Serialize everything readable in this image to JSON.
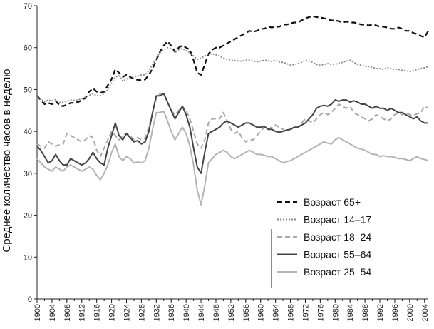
{
  "chart_data": {
    "type": "line",
    "title": "",
    "xlabel": "",
    "ylabel": "Среднее количество часов в неделю",
    "xlim": [
      1900,
      2005
    ],
    "ylim": [
      0,
      70
    ],
    "yticks": [
      0,
      10,
      20,
      30,
      40,
      50,
      60,
      70
    ],
    "xticks": [
      1900,
      1904,
      1908,
      1912,
      1916,
      1920,
      1924,
      1928,
      1932,
      1936,
      1940,
      1944,
      1948,
      1952,
      1956,
      1960,
      1964,
      1968,
      1972,
      1976,
      1980,
      1984,
      1988,
      1992,
      1996,
      2000,
      2004
    ],
    "legend_position": "bottom-right",
    "x": [
      1900,
      1901,
      1902,
      1903,
      1904,
      1905,
      1906,
      1907,
      1908,
      1909,
      1910,
      1911,
      1912,
      1913,
      1914,
      1915,
      1916,
      1917,
      1918,
      1919,
      1920,
      1921,
      1922,
      1923,
      1924,
      1925,
      1926,
      1927,
      1928,
      1929,
      1930,
      1931,
      1932,
      1933,
      1934,
      1935,
      1936,
      1937,
      1938,
      1939,
      1940,
      1941,
      1942,
      1943,
      1944,
      1945,
      1946,
      1947,
      1948,
      1949,
      1950,
      1951,
      1952,
      1953,
      1954,
      1955,
      1956,
      1957,
      1958,
      1959,
      1960,
      1961,
      1962,
      1963,
      1964,
      1965,
      1966,
      1967,
      1968,
      1969,
      1970,
      1971,
      1972,
      1973,
      1974,
      1975,
      1976,
      1977,
      1978,
      1979,
      1980,
      1981,
      1982,
      1983,
      1984,
      1985,
      1986,
      1987,
      1988,
      1989,
      1990,
      1991,
      1992,
      1993,
      1994,
      1995,
      1996,
      1997,
      1998,
      1999,
      2000,
      2001,
      2002,
      2003,
      2004,
      2005
    ],
    "series": [
      {
        "name": "Возраст 65+",
        "color": "#111111",
        "style": "dashed",
        "values": [
          48.5,
          47.5,
          46.5,
          46.8,
          46.5,
          47.2,
          46.3,
          46.0,
          46.4,
          46.8,
          46.8,
          47.0,
          47.4,
          48.0,
          49.5,
          50.3,
          49.5,
          49.2,
          49.5,
          51.0,
          52.5,
          54.8,
          54.0,
          53.0,
          53.5,
          53.0,
          52.5,
          52.3,
          52.2,
          52.4,
          53.5,
          55.0,
          57.0,
          59.0,
          60.5,
          61.5,
          60.5,
          59.0,
          60.0,
          60.5,
          60.0,
          59.5,
          57.0,
          54.0,
          53.5,
          56.0,
          58.5,
          59.5,
          60.0,
          60.0,
          60.5,
          61.0,
          61.5,
          62.0,
          62.5,
          63.0,
          63.5,
          64.0,
          63.8,
          64.0,
          64.5,
          64.5,
          65.0,
          64.8,
          65.0,
          65.0,
          65.5,
          65.5,
          65.8,
          66.0,
          66.0,
          66.5,
          67.0,
          67.3,
          67.5,
          67.3,
          67.2,
          67.0,
          66.8,
          66.5,
          66.5,
          66.3,
          66.0,
          66.2,
          66.0,
          66.0,
          65.8,
          65.5,
          65.5,
          65.3,
          65.5,
          65.3,
          65.0,
          65.0,
          64.8,
          64.5,
          64.5,
          64.8,
          64.5,
          64.0,
          64.0,
          63.5,
          63.2,
          62.8,
          62.5,
          64.0
        ]
      },
      {
        "name": "Возраст 14–17",
        "color": "#8a8a8a",
        "style": "dotted",
        "values": [
          48.2,
          47.8,
          47.0,
          47.5,
          47.3,
          47.6,
          46.9,
          47.0,
          47.2,
          47.5,
          47.4,
          47.5,
          47.8,
          48.2,
          48.6,
          49.0,
          48.5,
          48.5,
          49.0,
          50.0,
          51.5,
          53.0,
          53.3,
          52.0,
          52.5,
          52.8,
          53.0,
          53.2,
          53.5,
          53.5,
          54.5,
          56.0,
          57.5,
          58.8,
          59.5,
          60.0,
          59.8,
          58.8,
          59.5,
          59.8,
          59.3,
          58.8,
          58.0,
          57.2,
          57.5,
          58.0,
          58.5,
          58.5,
          58.3,
          58.0,
          57.5,
          57.2,
          57.0,
          56.9,
          56.8,
          56.8,
          57.0,
          57.0,
          56.8,
          56.6,
          56.8,
          57.0,
          56.9,
          56.7,
          57.0,
          56.6,
          56.5,
          56.2,
          55.8,
          56.0,
          56.2,
          56.5,
          57.0,
          56.8,
          56.5,
          56.0,
          55.8,
          56.0,
          56.2,
          56.0,
          56.0,
          56.3,
          56.5,
          56.8,
          57.0,
          56.5,
          56.0,
          55.8,
          55.5,
          55.5,
          55.3,
          55.0,
          55.0,
          54.8,
          55.2,
          55.0,
          54.8,
          54.8,
          54.6,
          54.5,
          54.3,
          54.5,
          54.8,
          55.0,
          55.2,
          55.5
        ]
      },
      {
        "name": "Возраст 18–24",
        "color": "#a9a9a9",
        "style": "dashed",
        "values": [
          37.0,
          36.5,
          36.0,
          37.5,
          37.0,
          36.5,
          36.8,
          37.0,
          39.5,
          39.0,
          38.5,
          38.0,
          37.5,
          38.0,
          39.0,
          38.5,
          35.5,
          34.0,
          36.0,
          38.0,
          40.0,
          39.0,
          38.0,
          39.0,
          39.5,
          39.0,
          38.0,
          38.5,
          38.0,
          38.5,
          41.0,
          44.5,
          48.0,
          49.0,
          49.0,
          47.0,
          45.0,
          44.0,
          45.0,
          46.0,
          45.0,
          43.0,
          40.0,
          37.0,
          36.0,
          38.0,
          42.0,
          43.0,
          43.0,
          43.0,
          44.5,
          42.5,
          40.5,
          39.5,
          40.0,
          38.5,
          37.5,
          38.0,
          38.0,
          39.0,
          40.0,
          41.0,
          40.5,
          41.0,
          41.5,
          41.0,
          40.5,
          40.0,
          40.5,
          40.8,
          41.0,
          42.0,
          43.0,
          42.5,
          42.0,
          43.0,
          44.0,
          44.5,
          44.0,
          44.5,
          45.5,
          46.5,
          46.0,
          45.5,
          46.0,
          44.5,
          44.0,
          43.5,
          43.0,
          42.5,
          43.0,
          44.0,
          43.5,
          43.0,
          42.5,
          43.0,
          44.0,
          44.5,
          44.0,
          44.5,
          44.0,
          43.8,
          44.2,
          44.5,
          46.0,
          45.5
        ]
      },
      {
        "name": "Возраст 55–64",
        "color": "#444444",
        "style": "solid",
        "values": [
          36.5,
          35.5,
          34.0,
          32.5,
          33.0,
          34.5,
          33.0,
          32.0,
          32.0,
          33.5,
          33.0,
          32.5,
          32.0,
          32.5,
          33.5,
          35.0,
          33.5,
          32.5,
          32.0,
          36.0,
          39.0,
          42.0,
          39.0,
          38.0,
          39.5,
          38.5,
          37.5,
          37.8,
          37.0,
          37.5,
          40.0,
          44.5,
          48.5,
          48.5,
          49.0,
          47.0,
          45.0,
          43.0,
          44.5,
          46.0,
          44.0,
          41.0,
          36.0,
          31.5,
          30.0,
          35.0,
          39.5,
          40.0,
          40.5,
          41.0,
          42.0,
          42.5,
          42.0,
          41.5,
          41.0,
          41.5,
          42.0,
          42.0,
          41.5,
          41.0,
          41.0,
          41.2,
          40.5,
          40.5,
          40.0,
          39.8,
          40.0,
          40.3,
          40.5,
          41.0,
          41.0,
          41.5,
          42.0,
          43.0,
          44.0,
          45.5,
          46.0,
          46.2,
          46.0,
          46.5,
          47.5,
          47.2,
          47.5,
          47.5,
          47.0,
          47.3,
          47.0,
          46.5,
          46.5,
          46.0,
          45.5,
          46.0,
          45.5,
          45.5,
          45.0,
          45.5,
          45.0,
          44.5,
          44.5,
          44.0,
          43.5,
          43.0,
          43.5,
          42.5,
          42.0,
          42.0
        ]
      },
      {
        "name": "Возраст 25–54",
        "color": "#b4b4b4",
        "style": "solid",
        "values": [
          33.5,
          32.5,
          31.5,
          31.0,
          30.5,
          31.5,
          31.0,
          30.5,
          31.5,
          32.0,
          31.5,
          31.0,
          30.5,
          31.0,
          31.5,
          31.0,
          29.5,
          28.5,
          30.0,
          32.0,
          35.0,
          37.0,
          34.0,
          33.0,
          34.0,
          33.5,
          32.5,
          32.7,
          32.5,
          33.0,
          36.0,
          40.5,
          44.5,
          44.5,
          44.8,
          42.5,
          40.0,
          38.0,
          39.5,
          41.0,
          39.5,
          36.5,
          32.0,
          26.0,
          22.5,
          27.0,
          32.5,
          33.5,
          34.5,
          35.0,
          35.5,
          35.0,
          34.0,
          33.5,
          34.0,
          34.5,
          35.0,
          35.5,
          35.0,
          34.5,
          34.5,
          34.3,
          34.0,
          34.0,
          33.5,
          33.0,
          32.5,
          32.8,
          33.0,
          33.5,
          34.0,
          34.5,
          35.0,
          35.5,
          36.0,
          36.5,
          37.0,
          37.5,
          37.2,
          37.0,
          38.0,
          38.5,
          38.0,
          37.5,
          37.0,
          36.5,
          36.0,
          35.8,
          35.5,
          35.0,
          34.5,
          34.5,
          34.0,
          34.2,
          34.0,
          34.0,
          33.8,
          33.5,
          33.5,
          33.3,
          33.0,
          33.5,
          34.0,
          33.5,
          33.3,
          33.0
        ]
      }
    ]
  }
}
